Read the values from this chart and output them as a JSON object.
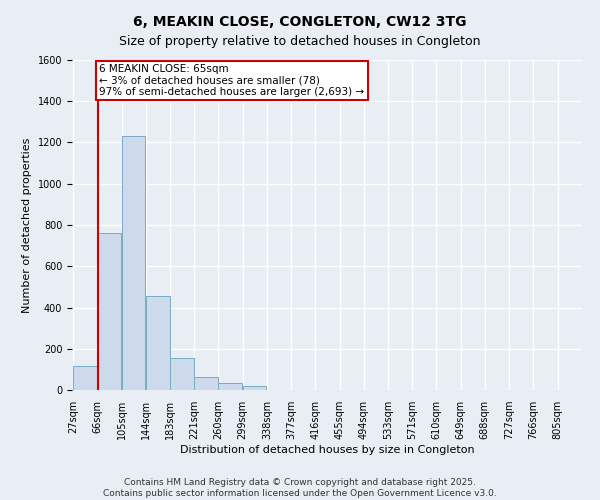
{
  "title": "6, MEAKIN CLOSE, CONGLETON, CW12 3TG",
  "subtitle": "Size of property relative to detached houses in Congleton",
  "xlabel": "Distribution of detached houses by size in Congleton",
  "ylabel": "Number of detached properties",
  "bin_labels": [
    "27sqm",
    "66sqm",
    "105sqm",
    "144sqm",
    "183sqm",
    "221sqm",
    "260sqm",
    "299sqm",
    "338sqm",
    "377sqm",
    "416sqm",
    "455sqm",
    "494sqm",
    "533sqm",
    "571sqm",
    "610sqm",
    "649sqm",
    "688sqm",
    "727sqm",
    "766sqm",
    "805sqm"
  ],
  "bin_edges": [
    27,
    66,
    105,
    144,
    183,
    221,
    260,
    299,
    338,
    377,
    416,
    455,
    494,
    533,
    571,
    610,
    649,
    688,
    727,
    766,
    805
  ],
  "bar_heights": [
    115,
    760,
    1230,
    455,
    155,
    62,
    35,
    20,
    0,
    0,
    0,
    0,
    0,
    0,
    0,
    0,
    0,
    0,
    0,
    0
  ],
  "bar_color": "#ccdaeb",
  "bar_edge_color": "#7aaac8",
  "property_line_x": 66,
  "annotation_text": "6 MEAKIN CLOSE: 65sqm\n← 3% of detached houses are smaller (78)\n97% of semi-detached houses are larger (2,693) →",
  "annotation_box_facecolor": "#ffffff",
  "annotation_box_edgecolor": "#cc0000",
  "ylim": [
    0,
    1600
  ],
  "yticks": [
    0,
    200,
    400,
    600,
    800,
    1000,
    1200,
    1400,
    1600
  ],
  "background_color": "#e8eef4",
  "grid_color": "#ffffff",
  "footer_text": "Contains HM Land Registry data © Crown copyright and database right 2025.\nContains public sector information licensed under the Open Government Licence v3.0.",
  "title_fontsize": 10,
  "subtitle_fontsize": 9,
  "axis_label_fontsize": 8,
  "tick_fontsize": 7,
  "annotation_fontsize": 7.5,
  "footer_fontsize": 6.5
}
